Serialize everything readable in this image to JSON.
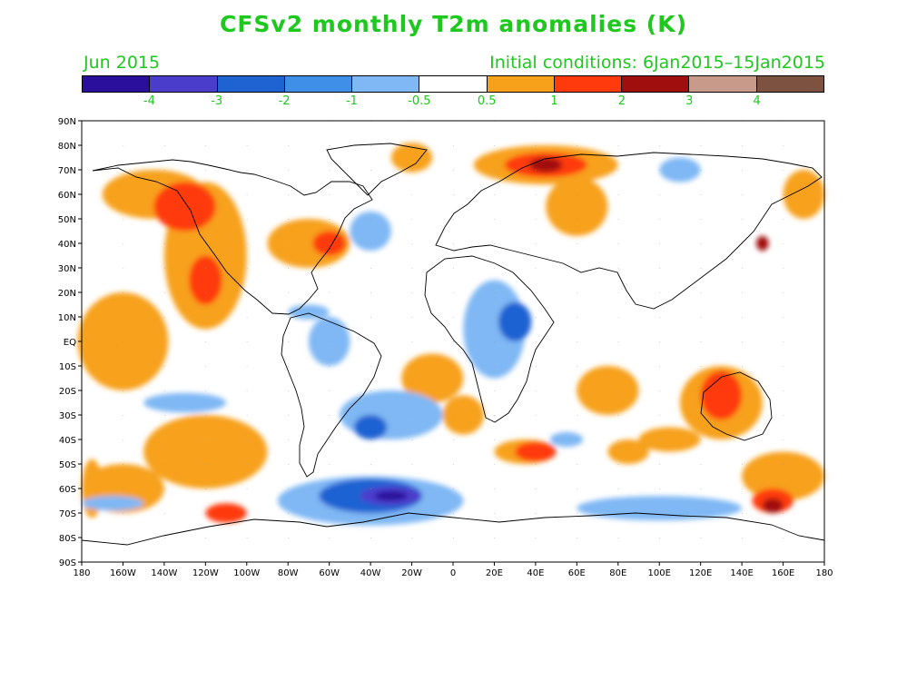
{
  "title": "CFSv2 monthly T2m anomalies (K)",
  "subtitle_left": "Jun 2015",
  "subtitle_right": "Initial conditions: 6Jan2015–15Jan2015",
  "colorbar": {
    "colors": [
      "#2a0e9c",
      "#4b3dcc",
      "#1f62d2",
      "#3f8fe8",
      "#7fb8f4",
      "#ffffff",
      "#f7a11a",
      "#ff3a0c",
      "#a10e0e",
      "#c89a8a",
      "#7e5240"
    ],
    "labels": [
      "-4",
      "-3",
      "-2",
      "-1",
      "-0.5",
      "0.5",
      "1",
      "2",
      "3",
      "4"
    ]
  },
  "axes": {
    "lat_labels": [
      "90N",
      "80N",
      "70N",
      "60N",
      "50N",
      "40N",
      "30N",
      "20N",
      "10N",
      "EQ",
      "10S",
      "20S",
      "30S",
      "40S",
      "50S",
      "60S",
      "70S",
      "80S",
      "90S"
    ],
    "lon_labels": [
      "180",
      "160W",
      "140W",
      "120W",
      "100W",
      "80W",
      "60W",
      "40W",
      "20W",
      "0",
      "20E",
      "40E",
      "60E",
      "80E",
      "100E",
      "120E",
      "140E",
      "160E",
      "180"
    ]
  },
  "anomaly_fields": [
    {
      "level": 1,
      "lon": -160,
      "lat": 0,
      "rx": 22,
      "ry": 20
    },
    {
      "level": 1,
      "lon": -120,
      "lat": 35,
      "rx": 20,
      "ry": 30
    },
    {
      "level": 1,
      "lon": -145,
      "lat": 60,
      "rx": 25,
      "ry": 10
    },
    {
      "level": 1,
      "lon": -70,
      "lat": 40,
      "rx": 20,
      "ry": 10
    },
    {
      "level": 1,
      "lon": -120,
      "lat": -45,
      "rx": 30,
      "ry": 15
    },
    {
      "level": 1,
      "lon": -160,
      "lat": -60,
      "rx": 20,
      "ry": 10
    },
    {
      "level": 1,
      "lon": -10,
      "lat": -15,
      "rx": 15,
      "ry": 10
    },
    {
      "level": 1,
      "lon": 5,
      "lat": -30,
      "rx": 10,
      "ry": 8
    },
    {
      "level": 1,
      "lon": 45,
      "lat": 72,
      "rx": 35,
      "ry": 8
    },
    {
      "level": 1,
      "lon": 60,
      "lat": 55,
      "rx": 15,
      "ry": 12
    },
    {
      "level": 1,
      "lon": 130,
      "lat": -25,
      "rx": 20,
      "ry": 15
    },
    {
      "level": 1,
      "lon": 75,
      "lat": -20,
      "rx": 15,
      "ry": 10
    },
    {
      "level": 1,
      "lon": 170,
      "lat": 60,
      "rx": 10,
      "ry": 10
    },
    {
      "level": 1,
      "lon": 160,
      "lat": -55,
      "rx": 20,
      "ry": 10
    },
    {
      "level": 1,
      "lon": 35,
      "lat": -45,
      "rx": 15,
      "ry": 5
    },
    {
      "level": 1,
      "lon": -20,
      "lat": 75,
      "rx": 10,
      "ry": 6
    },
    {
      "level": 1,
      "lon": 85,
      "lat": -45,
      "rx": 10,
      "ry": 5
    },
    {
      "level": 1,
      "lon": 105,
      "lat": -40,
      "rx": 15,
      "ry": 5
    },
    {
      "level": 1,
      "lon": -175,
      "lat": -60,
      "rx": 5,
      "ry": 12
    },
    {
      "level": 2,
      "lon": -130,
      "lat": 55,
      "rx": 15,
      "ry": 10
    },
    {
      "level": 2,
      "lon": -120,
      "lat": 25,
      "rx": 8,
      "ry": 10
    },
    {
      "level": 2,
      "lon": -60,
      "lat": 40,
      "rx": 8,
      "ry": 5
    },
    {
      "level": 2,
      "lon": 45,
      "lat": 72,
      "rx": 20,
      "ry": 5
    },
    {
      "level": 2,
      "lon": 40,
      "lat": -45,
      "rx": 10,
      "ry": 4
    },
    {
      "level": 2,
      "lon": 130,
      "lat": -22,
      "rx": 10,
      "ry": 10
    },
    {
      "level": 2,
      "lon": 155,
      "lat": -65,
      "rx": 10,
      "ry": 5
    },
    {
      "level": 2,
      "lon": -110,
      "lat": -70,
      "rx": 10,
      "ry": 4
    },
    {
      "level": 3,
      "lon": 150,
      "lat": 40,
      "rx": 3,
      "ry": 3
    },
    {
      "level": 3,
      "lon": 155,
      "lat": -67,
      "rx": 5,
      "ry": 3
    },
    {
      "level": 3,
      "lon": 45,
      "lat": 72,
      "rx": 8,
      "ry": 3
    },
    {
      "level": -1,
      "lon": -40,
      "lat": 45,
      "rx": 10,
      "ry": 8
    },
    {
      "level": -1,
      "lon": -60,
      "lat": 0,
      "rx": 10,
      "ry": 10
    },
    {
      "level": -1,
      "lon": -30,
      "lat": -30,
      "rx": 25,
      "ry": 10
    },
    {
      "level": -1,
      "lon": 20,
      "lat": 5,
      "rx": 15,
      "ry": 20
    },
    {
      "level": -1,
      "lon": 100,
      "lat": -68,
      "rx": 40,
      "ry": 5
    },
    {
      "level": -1,
      "lon": -40,
      "lat": -65,
      "rx": 45,
      "ry": 10
    },
    {
      "level": -1,
      "lon": 110,
      "lat": 70,
      "rx": 10,
      "ry": 5
    },
    {
      "level": -1,
      "lon": -130,
      "lat": -25,
      "rx": 20,
      "ry": 4
    },
    {
      "level": -1,
      "lon": -165,
      "lat": -66,
      "rx": 15,
      "ry": 3
    },
    {
      "level": -1,
      "lon": 55,
      "lat": -40,
      "rx": 8,
      "ry": 3
    },
    {
      "level": -1,
      "lon": -70,
      "lat": 12,
      "rx": 10,
      "ry": 3
    },
    {
      "level": -2,
      "lon": -40,
      "lat": -63,
      "rx": 25,
      "ry": 7
    },
    {
      "level": -2,
      "lon": 30,
      "lat": 8,
      "rx": 8,
      "ry": 8
    },
    {
      "level": -2,
      "lon": -40,
      "lat": -35,
      "rx": 8,
      "ry": 5
    },
    {
      "level": -3,
      "lon": -30,
      "lat": -63,
      "rx": 15,
      "ry": 4
    },
    {
      "level": -4,
      "lon": -30,
      "lat": -63,
      "rx": 8,
      "ry": 2
    }
  ]
}
